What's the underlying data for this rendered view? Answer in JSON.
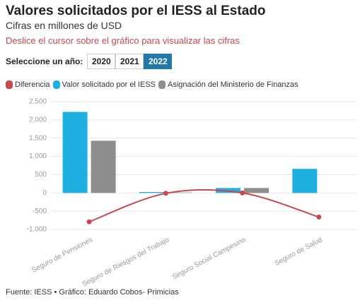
{
  "chart_data": {
    "type": "bar",
    "title": "Valores solicitados por el IESS al Estado",
    "subtitle": "Cifras en millones de USD",
    "instruction": "Deslice el cursor sobre el gráfico para visualizar las cifras",
    "year_label": "Seleccione un año:",
    "years": [
      "2020",
      "2021",
      "2022"
    ],
    "selected_year": "2022",
    "categories": [
      "Seguro de Pensiones",
      "Seguro de Riesgos del Trabajo",
      "Seguro Social Campesino",
      "Seguro de Salud"
    ],
    "series": [
      {
        "name": "Diferencia",
        "color": "#c9474f",
        "type": "line",
        "values": [
          -790,
          -10,
          0,
          -660
        ]
      },
      {
        "name": "Valor solicitado por el IESS",
        "color": "#1eb0e0",
        "type": "bar",
        "values": [
          2220,
          25,
          135,
          660
        ]
      },
      {
        "name": "Asignación del Ministerio de Finanzas",
        "color": "#8e8e8e",
        "type": "bar",
        "values": [
          1430,
          12,
          135,
          0
        ]
      }
    ],
    "ylim": [
      -1000,
      2500
    ],
    "yticks": [
      {
        "value": 2500,
        "label": "2,500"
      },
      {
        "value": 2000,
        "label": "2,000"
      },
      {
        "value": 1500,
        "label": "1,500"
      },
      {
        "value": 1000,
        "label": "1,000"
      },
      500,
      0,
      -500,
      {
        "value": -1000,
        "label": "-1,000"
      }
    ],
    "grid": true,
    "source": "Fuente: IESS • Gráfico: Eduardo Cobos- Primicias"
  }
}
